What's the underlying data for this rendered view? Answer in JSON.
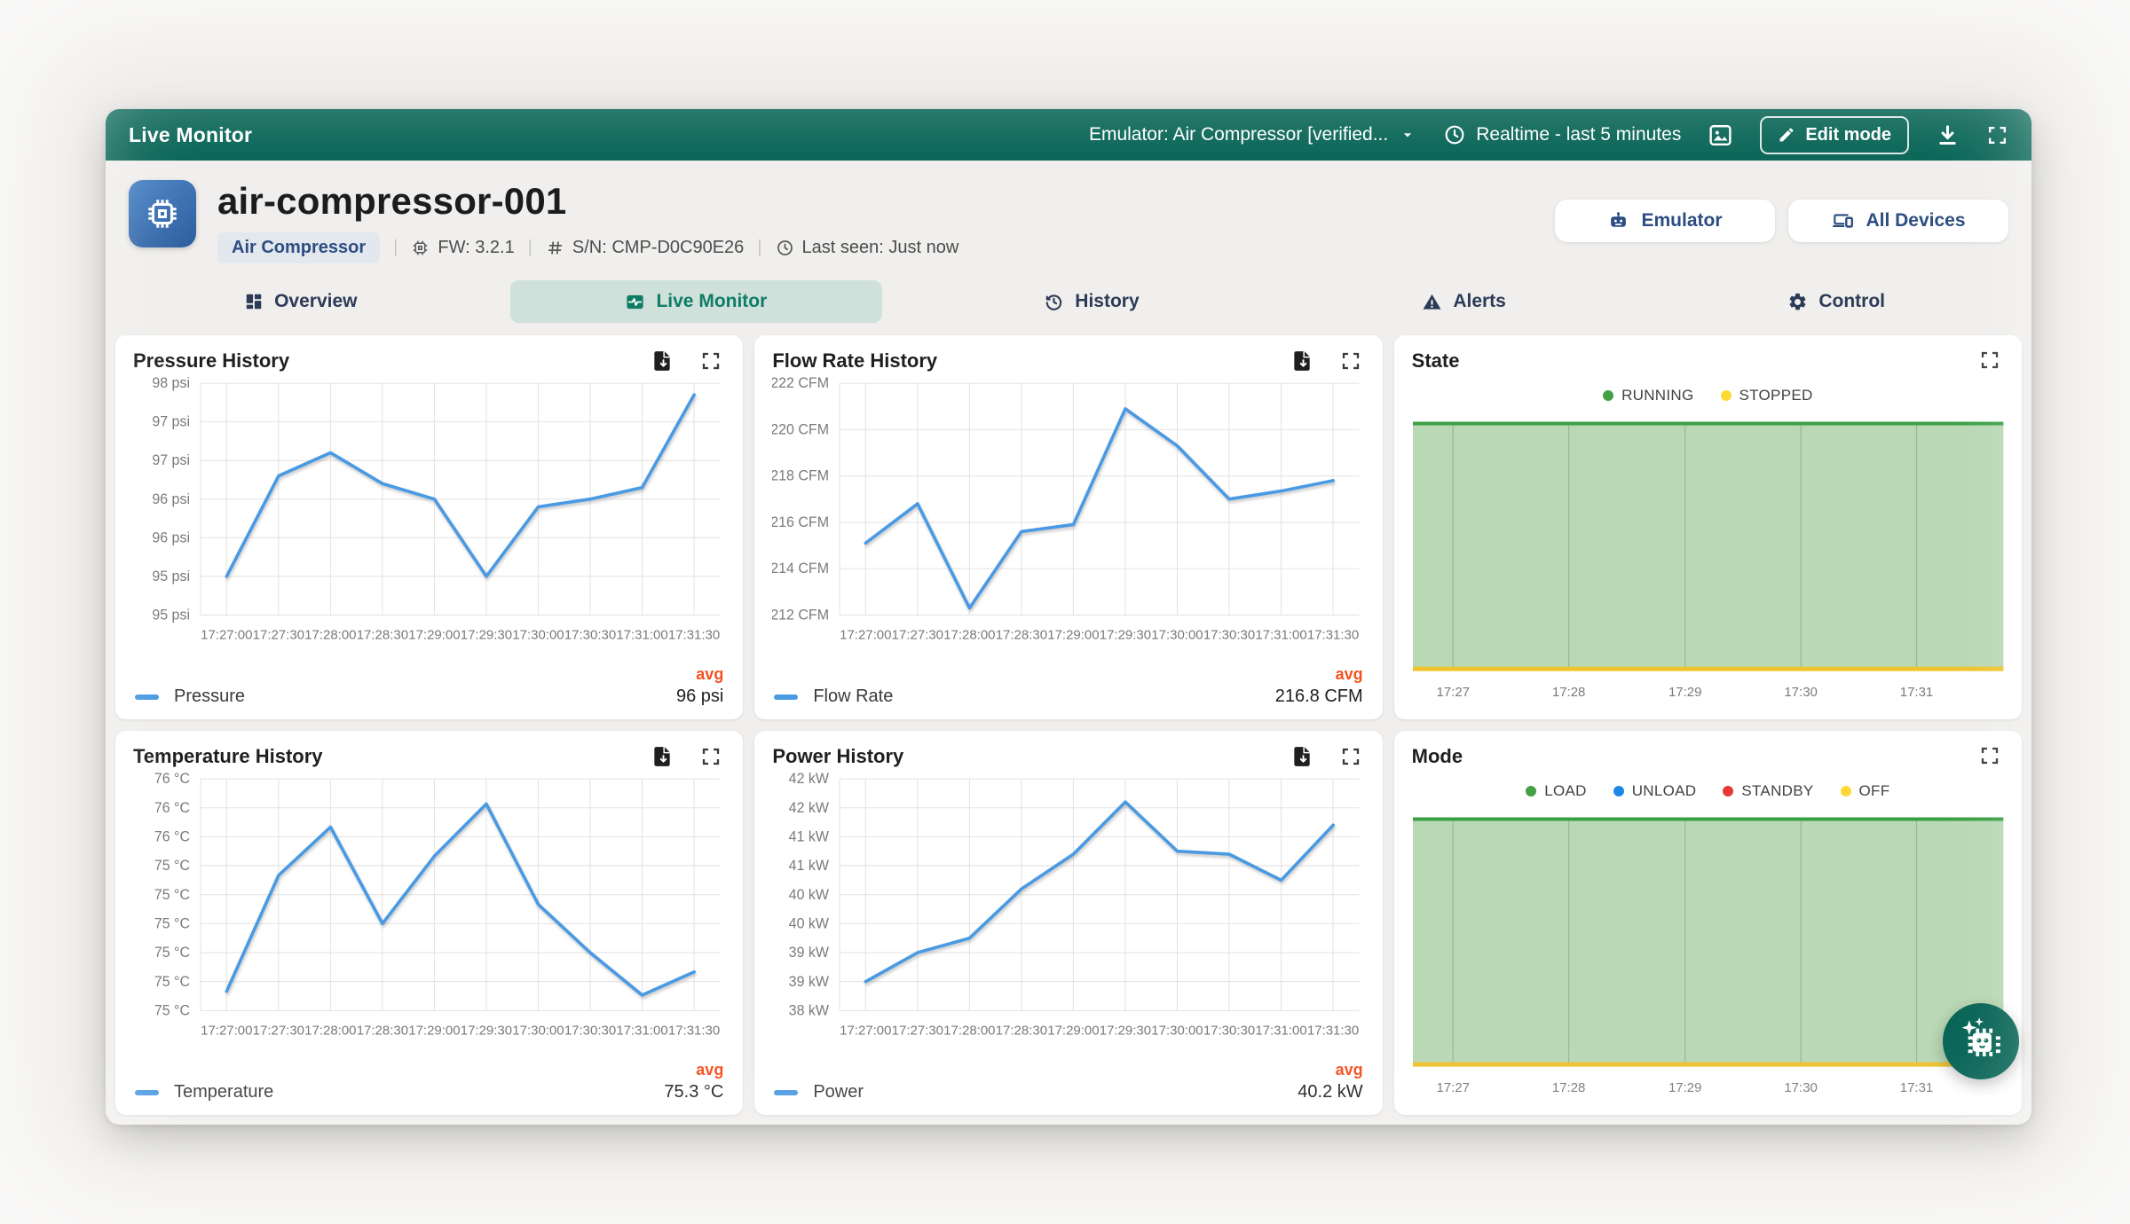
{
  "colors": {
    "appbar_teal": "#076455",
    "line_blue": "#4a9ae3",
    "avg_orange": "#f4511e",
    "area_fill_green": "#b9d8b4",
    "area_top_green": "#3ba045",
    "area_bottom_yellow": "#eec32d",
    "device_icon_blue": "#3c6fae",
    "badge_navy": "#2d4d80",
    "active_tab_teal": "#0e7d66"
  },
  "appbar": {
    "title": "Live Monitor",
    "device_selector": "Emulator: Air Compressor [verified...",
    "realtime": "Realtime - last 5 minutes",
    "edit_mode": "Edit mode"
  },
  "device": {
    "name": "air-compressor-001",
    "type_badge": "Air Compressor",
    "firmware": "FW: 3.2.1",
    "serial": "S/N: CMP-D0C90E26",
    "last_seen": "Last seen: Just now",
    "emulator_button": "Emulator",
    "all_devices_button": "All Devices"
  },
  "tabs": [
    {
      "label": "Overview",
      "icon": "dashboard-icon",
      "active": false
    },
    {
      "label": "Live Monitor",
      "icon": "live-monitor-icon",
      "active": true
    },
    {
      "label": "History",
      "icon": "history-icon",
      "active": false
    },
    {
      "label": "Alerts",
      "icon": "alerts-icon",
      "active": false
    },
    {
      "label": "Control",
      "icon": "control-icon",
      "active": false
    }
  ],
  "chart_data": [
    {
      "id": "pressure",
      "type": "line",
      "title": "Pressure History",
      "x": [
        "17:27:00",
        "17:27:30",
        "17:28:00",
        "17:28:30",
        "17:29:00",
        "17:29:30",
        "17:30:00",
        "17:30:30",
        "17:31:00",
        "17:31:30"
      ],
      "y_tick_labels": [
        "98 psi",
        "97 psi",
        "97 psi",
        "96 psi",
        "96 psi",
        "95 psi",
        "95 psi"
      ],
      "ylim": [
        94.8,
        97.8
      ],
      "series": [
        {
          "name": "Pressure",
          "values": [
            95.3,
            96.6,
            96.9,
            96.5,
            96.3,
            95.3,
            96.2,
            96.3,
            96.45,
            97.65
          ]
        }
      ],
      "avg_label": "avg",
      "avg_value": "96 psi"
    },
    {
      "id": "flow-rate",
      "type": "line",
      "title": "Flow Rate History",
      "x": [
        "17:27:00",
        "17:27:30",
        "17:28:00",
        "17:28:30",
        "17:29:00",
        "17:29:30",
        "17:30:00",
        "17:30:30",
        "17:31:00",
        "17:31:30"
      ],
      "y_tick_labels": [
        "222 CFM",
        "220 CFM",
        "218 CFM",
        "216 CFM",
        "214 CFM",
        "212 CFM"
      ],
      "ylim": [
        212,
        222
      ],
      "series": [
        {
          "name": "Flow Rate",
          "values": [
            215.1,
            216.8,
            212.3,
            215.6,
            215.9,
            220.9,
            219.3,
            217.0,
            217.35,
            217.8
          ]
        }
      ],
      "avg_label": "avg",
      "avg_value": "216.8 CFM"
    },
    {
      "id": "state",
      "type": "state-area",
      "title": "State",
      "x": [
        "17:27",
        "17:28",
        "17:29",
        "17:30",
        "17:31"
      ],
      "legend": [
        {
          "label": "RUNNING",
          "color": "#43a047"
        },
        {
          "label": "STOPPED",
          "color": "#fdd835"
        }
      ],
      "active_state": "RUNNING"
    },
    {
      "id": "temperature",
      "type": "line",
      "title": "Temperature History",
      "x": [
        "17:27:00",
        "17:27:30",
        "17:28:00",
        "17:28:30",
        "17:29:00",
        "17:29:30",
        "17:30:00",
        "17:30:30",
        "17:31:00",
        "17:31:30"
      ],
      "y_tick_labels": [
        "76 °C",
        "76 °C",
        "76 °C",
        "75 °C",
        "75 °C",
        "75 °C",
        "75 °C",
        "75 °C",
        "75 °C"
      ],
      "ylim": [
        74.95,
        76.15
      ],
      "series": [
        {
          "name": "Temperature",
          "values": [
            75.05,
            75.65,
            75.9,
            75.4,
            75.75,
            76.02,
            75.5,
            75.25,
            75.03,
            75.15
          ]
        }
      ],
      "avg_label": "avg",
      "avg_value": "75.3 °C"
    },
    {
      "id": "power",
      "type": "line",
      "title": "Power History",
      "x": [
        "17:27:00",
        "17:27:30",
        "17:28:00",
        "17:28:30",
        "17:29:00",
        "17:29:30",
        "17:30:00",
        "17:30:30",
        "17:31:00",
        "17:31:30"
      ],
      "y_tick_labels": [
        "42 kW",
        "42 kW",
        "41 kW",
        "41 kW",
        "40 kW",
        "40 kW",
        "39 kW",
        "39 kW",
        "38 kW"
      ],
      "ylim": [
        38.2,
        42.2
      ],
      "series": [
        {
          "name": "Power",
          "values": [
            38.7,
            39.2,
            39.45,
            40.3,
            40.9,
            41.8,
            40.95,
            40.9,
            40.45,
            41.4
          ]
        }
      ],
      "avg_label": "avg",
      "avg_value": "40.2 kW"
    },
    {
      "id": "mode",
      "type": "state-area",
      "title": "Mode",
      "x": [
        "17:27",
        "17:28",
        "17:29",
        "17:30",
        "17:31"
      ],
      "legend": [
        {
          "label": "LOAD",
          "color": "#43a047"
        },
        {
          "label": "UNLOAD",
          "color": "#1e88e5"
        },
        {
          "label": "STANDBY",
          "color": "#e53935"
        },
        {
          "label": "OFF",
          "color": "#fdd835"
        }
      ],
      "active_state": "LOAD"
    }
  ]
}
